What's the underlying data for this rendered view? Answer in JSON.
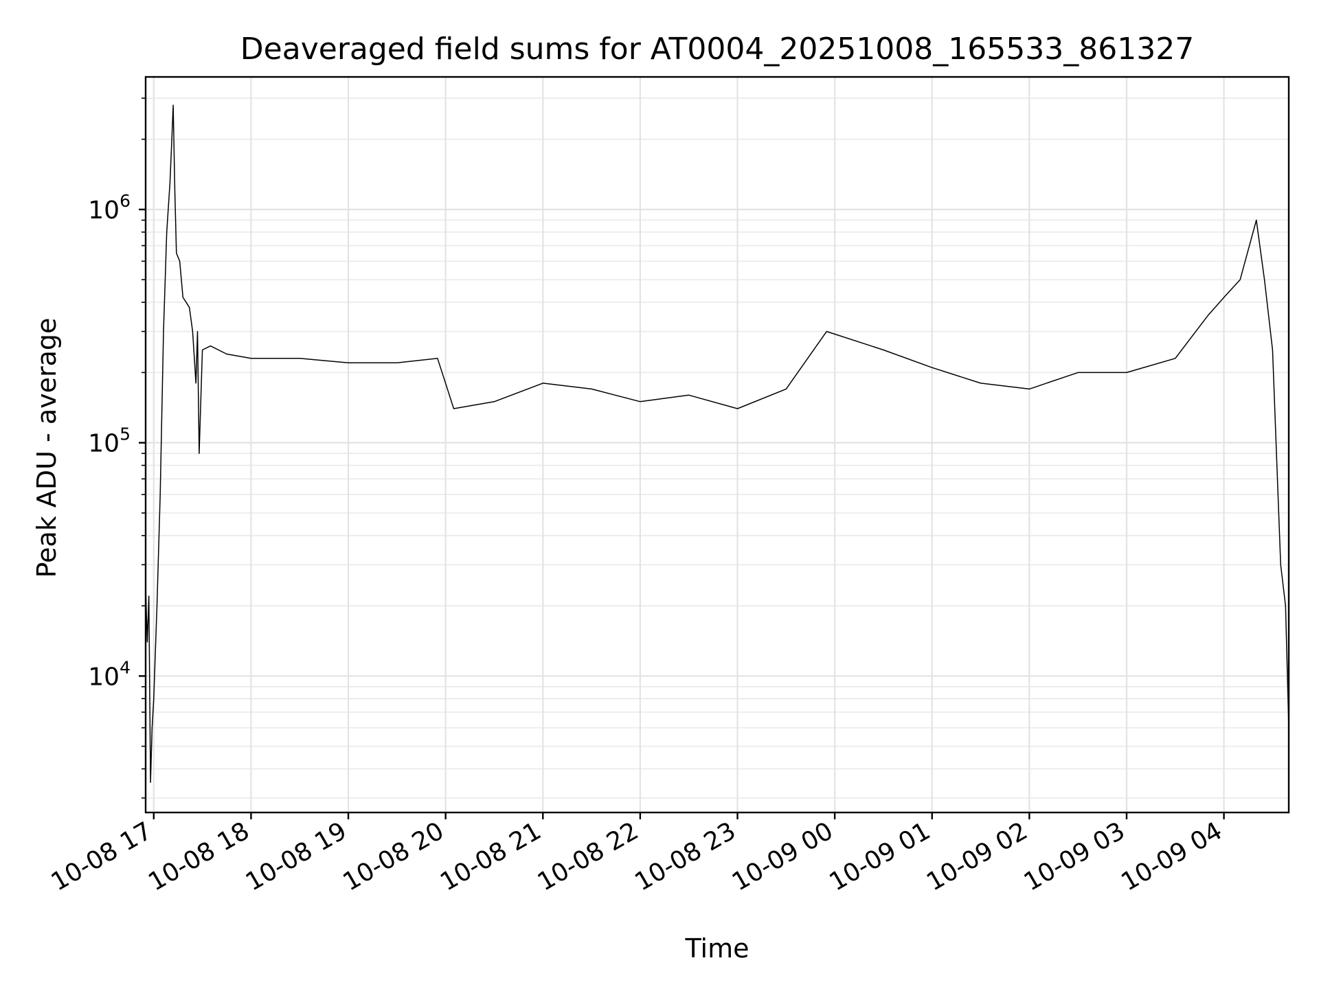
{
  "chart_data": {
    "type": "line",
    "title": "Deaveraged field sums for AT0004_20251008_165533_861327",
    "xlabel": "Time",
    "ylabel": "Peak ADU - average",
    "x_axis": {
      "type": "datetime",
      "range": [
        "2025-10-08T16:55",
        "2025-10-09T04:40"
      ],
      "ticks": [
        "2025-10-08T17:00",
        "2025-10-08T18:00",
        "2025-10-08T19:00",
        "2025-10-08T20:00",
        "2025-10-08T21:00",
        "2025-10-08T22:00",
        "2025-10-08T23:00",
        "2025-10-09T00:00",
        "2025-10-09T01:00",
        "2025-10-09T02:00",
        "2025-10-09T03:00",
        "2025-10-09T04:00"
      ],
      "tick_labels": [
        "10-08 17",
        "10-08 18",
        "10-08 19",
        "10-08 20",
        "10-08 21",
        "10-08 22",
        "10-08 23",
        "10-09 00",
        "10-09 01",
        "10-09 02",
        "10-09 03",
        "10-09 04"
      ],
      "tick_label_rotation": 30
    },
    "y_axis": {
      "scale": "log",
      "range": [
        2600,
        3700000
      ],
      "ticks": [
        10000,
        100000,
        1000000
      ],
      "tick_labels": [
        {
          "base": "10",
          "exp": "4"
        },
        {
          "base": "10",
          "exp": "5"
        },
        {
          "base": "10",
          "exp": "6"
        }
      ]
    },
    "grid": true,
    "line_color": "#000000",
    "series": [
      {
        "x": [
          "2025-10-08T16:55",
          "2025-10-08T16:56",
          "2025-10-08T16:57",
          "2025-10-08T16:58",
          "2025-10-08T16:59",
          "2025-10-08T17:00",
          "2025-10-08T17:02",
          "2025-10-08T17:04",
          "2025-10-08T17:06",
          "2025-10-08T17:08",
          "2025-10-08T17:10",
          "2025-10-08T17:11",
          "2025-10-08T17:12",
          "2025-10-08T17:13",
          "2025-10-08T17:14",
          "2025-10-08T17:16",
          "2025-10-08T17:18",
          "2025-10-08T17:20",
          "2025-10-08T17:22",
          "2025-10-08T17:24",
          "2025-10-08T17:26",
          "2025-10-08T17:27",
          "2025-10-08T17:28",
          "2025-10-08T17:30",
          "2025-10-08T17:35",
          "2025-10-08T17:45",
          "2025-10-08T18:00",
          "2025-10-08T18:30",
          "2025-10-08T19:00",
          "2025-10-08T19:30",
          "2025-10-08T19:55",
          "2025-10-08T20:05",
          "2025-10-08T20:30",
          "2025-10-08T21:00",
          "2025-10-08T21:30",
          "2025-10-08T22:00",
          "2025-10-08T22:30",
          "2025-10-08T23:00",
          "2025-10-08T23:30",
          "2025-10-08T23:55",
          "2025-10-09T00:30",
          "2025-10-09T01:00",
          "2025-10-09T01:30",
          "2025-10-09T02:00",
          "2025-10-09T02:30",
          "2025-10-09T03:00",
          "2025-10-09T03:30",
          "2025-10-09T03:50",
          "2025-10-09T04:00",
          "2025-10-09T04:10",
          "2025-10-09T04:20",
          "2025-10-09T04:25",
          "2025-10-09T04:30",
          "2025-10-09T04:35",
          "2025-10-09T04:38",
          "2025-10-09T04:40"
        ],
        "y": [
          24000,
          14000,
          22000,
          3500,
          6000,
          8000,
          20000,
          60000,
          300000,
          800000,
          1300000,
          1900000,
          2800000,
          1200000,
          650000,
          600000,
          420000,
          400000,
          380000,
          300000,
          180000,
          300000,
          90000,
          250000,
          260000,
          240000,
          230000,
          230000,
          220000,
          220000,
          230000,
          140000,
          150000,
          180000,
          170000,
          150000,
          160000,
          140000,
          170000,
          300000,
          250000,
          210000,
          180000,
          170000,
          200000,
          200000,
          230000,
          350000,
          420000,
          500000,
          900000,
          500000,
          250000,
          30000,
          20000,
          6000
        ]
      }
    ]
  }
}
